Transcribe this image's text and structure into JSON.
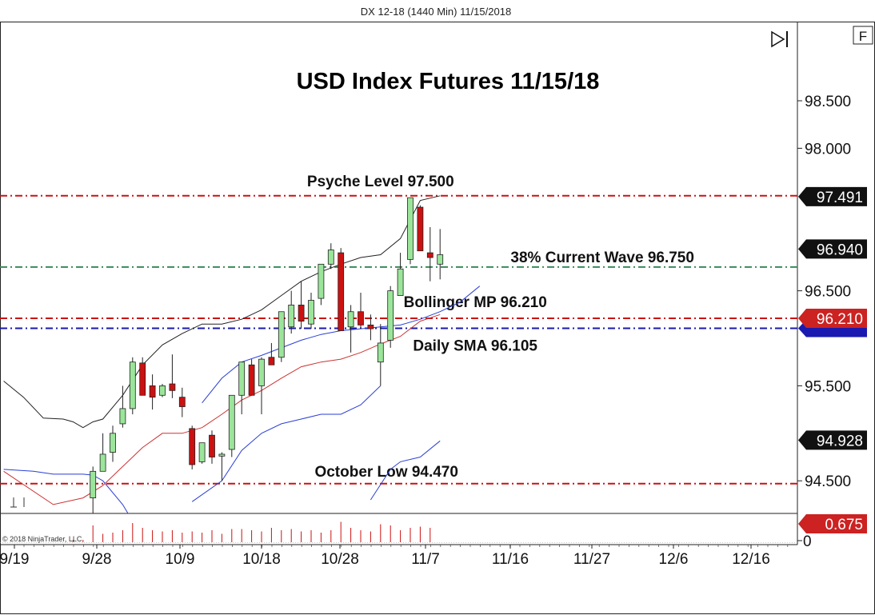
{
  "header": {
    "caption": "DX 12-18 (1440 Min)  11/15/2018",
    "f_button": "F",
    "copyright": "© 2018 NinjaTrader, LLC"
  },
  "colors": {
    "candle_up": "#9be59b",
    "candle_down": "#cc1111",
    "bollinger_band": "#222222",
    "sma_line": "#2a3fd6",
    "bollinger_mid": "#cc3333",
    "level_red": "#cc1111",
    "level_green": "#3a8a5a",
    "level_blue": "#1a1aaa",
    "flag_red": "#cc2222",
    "flag_black": "#111111",
    "flag_blue": "#1a1ab0"
  },
  "chart_data": {
    "type": "candlestick",
    "title": "USD Index Futures 11/15/18",
    "x_tick_labels": [
      "9/19",
      "9/28",
      "10/9",
      "10/18",
      "10/28",
      "11/7",
      "11/16",
      "11/27",
      "12/6",
      "12/16"
    ],
    "y_ticks": [
      "98.500",
      "98.000",
      "96.500",
      "95.500",
      "94.500"
    ],
    "y_tick_values": [
      98.5,
      98.0,
      96.5,
      95.5,
      94.5
    ],
    "bottom_axis_label": "0",
    "ylim": [
      94.25,
      98.9
    ],
    "grid": false,
    "candles": [
      {
        "x": 9,
        "open": 94.32,
        "high": 94.65,
        "low": 93.8,
        "close": 94.6
      },
      {
        "x": 10,
        "open": 94.6,
        "high": 95.0,
        "low": 94.6,
        "close": 94.78
      },
      {
        "x": 11,
        "open": 94.8,
        "high": 95.08,
        "low": 94.7,
        "close": 95.0
      },
      {
        "x": 12,
        "open": 95.1,
        "high": 95.5,
        "low": 95.06,
        "close": 95.26
      },
      {
        "x": 13,
        "open": 95.26,
        "high": 95.8,
        "low": 95.2,
        "close": 95.75
      },
      {
        "x": 14,
        "open": 95.74,
        "high": 95.8,
        "low": 95.4,
        "close": 95.4
      },
      {
        "x": 15,
        "open": 95.5,
        "high": 95.62,
        "low": 95.25,
        "close": 95.38
      },
      {
        "x": 16,
        "open": 95.4,
        "high": 95.52,
        "low": 95.38,
        "close": 95.5
      },
      {
        "x": 17,
        "open": 95.52,
        "high": 95.83,
        "low": 95.37,
        "close": 95.45
      },
      {
        "x": 18,
        "open": 95.38,
        "high": 95.48,
        "low": 95.17,
        "close": 95.28
      },
      {
        "x": 19,
        "open": 95.05,
        "high": 95.08,
        "low": 94.62,
        "close": 94.67
      },
      {
        "x": 20,
        "open": 94.7,
        "high": 94.88,
        "low": 94.68,
        "close": 94.9
      },
      {
        "x": 21,
        "open": 94.98,
        "high": 95.03,
        "low": 94.68,
        "close": 94.75
      },
      {
        "x": 22,
        "open": 94.76,
        "high": 94.8,
        "low": 94.5,
        "close": 94.78
      },
      {
        "x": 23,
        "open": 94.83,
        "high": 95.4,
        "low": 94.75,
        "close": 95.4
      },
      {
        "x": 24,
        "open": 95.4,
        "high": 95.75,
        "low": 95.2,
        "close": 95.75
      },
      {
        "x": 25,
        "open": 95.72,
        "high": 95.78,
        "low": 95.4,
        "close": 95.4
      },
      {
        "x": 26,
        "open": 95.5,
        "high": 95.8,
        "low": 95.2,
        "close": 95.78
      },
      {
        "x": 27,
        "open": 95.8,
        "high": 95.95,
        "low": 95.72,
        "close": 95.72
      },
      {
        "x": 28,
        "open": 95.8,
        "high": 96.28,
        "low": 95.75,
        "close": 96.28
      },
      {
        "x": 29,
        "open": 96.12,
        "high": 96.5,
        "low": 96.05,
        "close": 96.35
      },
      {
        "x": 30,
        "open": 96.35,
        "high": 96.6,
        "low": 96.1,
        "close": 96.18
      },
      {
        "x": 31,
        "open": 96.15,
        "high": 96.48,
        "low": 96.1,
        "close": 96.4
      },
      {
        "x": 32,
        "open": 96.42,
        "high": 96.78,
        "low": 96.35,
        "close": 96.78
      },
      {
        "x": 33,
        "open": 96.78,
        "high": 97.0,
        "low": 96.73,
        "close": 96.93
      },
      {
        "x": 34,
        "open": 96.9,
        "high": 96.95,
        "low": 96.08,
        "close": 96.08
      },
      {
        "x": 35,
        "open": 96.12,
        "high": 96.35,
        "low": 95.85,
        "close": 96.28
      },
      {
        "x": 36,
        "open": 96.28,
        "high": 96.48,
        "low": 96.1,
        "close": 96.14
      },
      {
        "x": 37,
        "open": 96.14,
        "high": 96.25,
        "low": 95.98,
        "close": 96.1
      },
      {
        "x": 38,
        "open": 95.75,
        "high": 96.15,
        "low": 95.5,
        "close": 95.95
      },
      {
        "x": 39,
        "open": 95.98,
        "high": 96.55,
        "low": 95.9,
        "close": 96.5
      },
      {
        "x": 40,
        "open": 96.45,
        "high": 96.9,
        "low": 96.45,
        "close": 96.73
      },
      {
        "x": 41,
        "open": 96.83,
        "high": 97.48,
        "low": 96.78,
        "close": 97.48
      },
      {
        "x": 42,
        "open": 97.38,
        "high": 97.4,
        "low": 96.92,
        "close": 96.92
      },
      {
        "x": 43,
        "open": 96.9,
        "high": 97.17,
        "low": 96.6,
        "close": 96.85
      },
      {
        "x": 44,
        "open": 96.78,
        "high": 97.15,
        "low": 96.62,
        "close": 96.88
      }
    ],
    "bollinger_upper": [
      [
        0,
        95.55
      ],
      [
        2,
        95.38
      ],
      [
        4,
        95.16
      ],
      [
        6,
        95.15
      ],
      [
        7,
        95.12
      ],
      [
        8,
        95.06
      ],
      [
        9,
        95.12
      ],
      [
        10,
        95.15
      ],
      [
        12,
        95.4
      ],
      [
        14,
        95.72
      ],
      [
        16,
        95.93
      ],
      [
        18,
        96.05
      ],
      [
        20,
        96.15
      ],
      [
        22,
        96.15
      ],
      [
        24,
        96.2
      ],
      [
        26,
        96.3
      ],
      [
        28,
        96.45
      ],
      [
        30,
        96.6
      ],
      [
        32,
        96.7
      ],
      [
        34,
        96.78
      ],
      [
        36,
        96.85
      ],
      [
        38,
        96.88
      ],
      [
        40,
        97.05
      ],
      [
        42,
        97.45
      ],
      [
        44,
        97.5
      ]
    ],
    "bollinger_lower": [
      [
        0,
        94.62
      ],
      [
        3,
        94.6
      ],
      [
        5,
        94.57
      ],
      [
        8,
        94.57
      ],
      [
        9,
        94.56
      ],
      [
        10,
        94.5
      ],
      [
        12,
        94.25
      ],
      [
        14,
        93.9
      ]
    ],
    "bollinger_lower_2": [
      [
        19,
        94.28
      ],
      [
        22,
        94.5
      ],
      [
        24,
        94.82
      ],
      [
        26,
        95.0
      ],
      [
        28,
        95.1
      ],
      [
        30,
        95.15
      ],
      [
        32,
        95.2
      ],
      [
        34,
        95.2
      ],
      [
        36,
        95.3
      ],
      [
        38,
        95.5
      ]
    ],
    "bollinger_lower_3": [
      [
        37,
        94.3
      ],
      [
        39,
        94.62
      ],
      [
        40,
        94.7
      ],
      [
        42,
        94.75
      ],
      [
        44,
        94.92
      ]
    ],
    "bollinger_mid": [
      [
        0,
        94.6
      ],
      [
        5,
        94.25
      ],
      [
        8,
        94.32
      ],
      [
        10,
        94.45
      ],
      [
        12,
        94.65
      ],
      [
        14,
        94.85
      ],
      [
        16,
        95.0
      ],
      [
        18,
        95.0
      ],
      [
        20,
        95.06
      ],
      [
        22,
        95.2
      ],
      [
        24,
        95.35
      ],
      [
        26,
        95.45
      ],
      [
        28,
        95.58
      ],
      [
        30,
        95.7
      ],
      [
        32,
        95.75
      ],
      [
        34,
        95.78
      ],
      [
        36,
        95.85
      ],
      [
        38,
        95.94
      ],
      [
        40,
        96.02
      ],
      [
        42,
        96.18
      ],
      [
        44,
        96.25
      ]
    ],
    "sma": [
      [
        20,
        95.32
      ],
      [
        22,
        95.58
      ],
      [
        24,
        95.75
      ],
      [
        26,
        95.82
      ],
      [
        28,
        95.9
      ],
      [
        30,
        95.98
      ],
      [
        32,
        96.04
      ],
      [
        34,
        96.08
      ],
      [
        36,
        96.1
      ],
      [
        38,
        96.12
      ],
      [
        40,
        96.14
      ],
      [
        42,
        96.2
      ],
      [
        44,
        96.28
      ],
      [
        46,
        96.38
      ],
      [
        48,
        96.55
      ]
    ],
    "volume_bars": [
      {
        "x": 7,
        "v": 0.1
      },
      {
        "x": 8,
        "v": 0.1
      },
      {
        "x": 9,
        "v": 0.7
      },
      {
        "x": 10,
        "v": 0.35
      },
      {
        "x": 11,
        "v": 0.4
      },
      {
        "x": 12,
        "v": 0.5
      },
      {
        "x": 13,
        "v": 0.8
      },
      {
        "x": 14,
        "v": 0.6
      },
      {
        "x": 15,
        "v": 0.5
      },
      {
        "x": 16,
        "v": 0.45
      },
      {
        "x": 17,
        "v": 0.5
      },
      {
        "x": 18,
        "v": 0.4
      },
      {
        "x": 19,
        "v": 0.45
      },
      {
        "x": 20,
        "v": 0.4
      },
      {
        "x": 21,
        "v": 0.5
      },
      {
        "x": 22,
        "v": 0.35
      },
      {
        "x": 23,
        "v": 0.55
      },
      {
        "x": 24,
        "v": 0.55
      },
      {
        "x": 25,
        "v": 0.5
      },
      {
        "x": 26,
        "v": 0.45
      },
      {
        "x": 27,
        "v": 0.6
      },
      {
        "x": 28,
        "v": 0.5
      },
      {
        "x": 29,
        "v": 0.55
      },
      {
        "x": 30,
        "v": 0.45
      },
      {
        "x": 31,
        "v": 0.5
      },
      {
        "x": 32,
        "v": 0.4
      },
      {
        "x": 33,
        "v": 0.5
      },
      {
        "x": 34,
        "v": 0.85
      },
      {
        "x": 35,
        "v": 0.6
      },
      {
        "x": 36,
        "v": 0.5
      },
      {
        "x": 37,
        "v": 0.45
      },
      {
        "x": 38,
        "v": 0.75
      },
      {
        "x": 39,
        "v": 0.7
      },
      {
        "x": 40,
        "v": 0.5
      },
      {
        "x": 41,
        "v": 0.6
      },
      {
        "x": 42,
        "v": 0.65
      },
      {
        "x": 43,
        "v": 0.6
      }
    ],
    "levels": [
      {
        "name": "Psyche Level 97.500",
        "value": 97.5,
        "color": "#cc1111",
        "dash": "dash-dot",
        "label_x": 38
      },
      {
        "name": "38% Current Wave 96.750",
        "value": 96.75,
        "color": "#3a8a5a",
        "dash": "dash-dot",
        "label_x": 59
      },
      {
        "name": "Bollinger MP 96.210",
        "value": 96.21,
        "color": "#cc1111",
        "dash": "dash-dot",
        "label_x": 49
      },
      {
        "name": "Daily SMA 96.105",
        "value": 96.105,
        "color": "#1a1aaa",
        "dash": "dash-dot",
        "label_x": 49
      },
      {
        "name": "October Low 94.470",
        "value": 94.47,
        "color": "#cc1111",
        "dash": "dash-dot",
        "label_x": 39
      }
    ],
    "price_flags": [
      {
        "text": "97.491",
        "value": 97.491,
        "style": "black"
      },
      {
        "text": "96.940",
        "value": 96.94,
        "style": "black"
      },
      {
        "text": "96.210",
        "value": 96.21,
        "style": "red"
      },
      {
        "text": "94.928",
        "value": 94.928,
        "style": "black"
      }
    ],
    "volume_flag": {
      "text": "0.675",
      "style": "red"
    }
  }
}
